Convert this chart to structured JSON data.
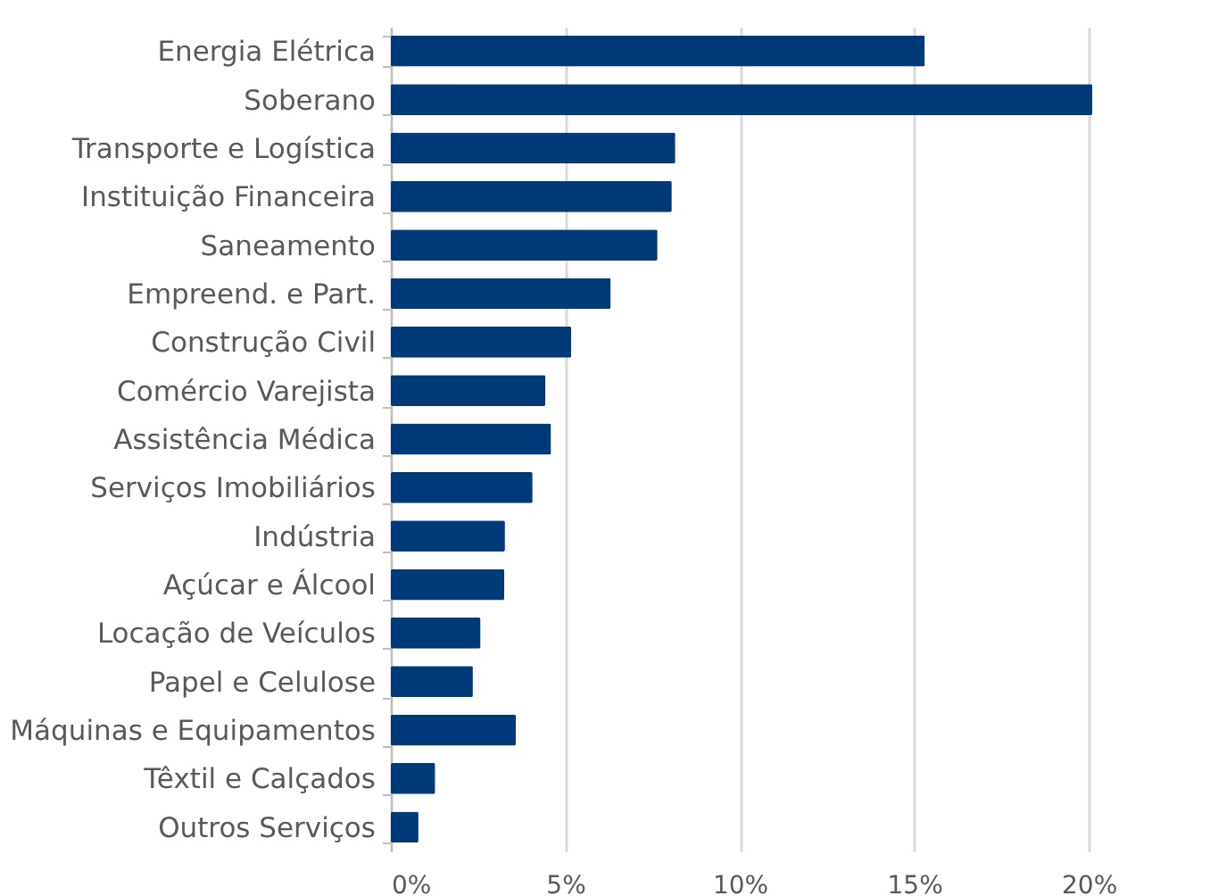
{
  "chart_data": {
    "type": "bar",
    "orientation": "horizontal",
    "categories": [
      "Energia Elétrica",
      "Soberano",
      "Transporte e Logística",
      "Instituição Financeira",
      "Saneamento",
      "Empreend. e Part.",
      "Construção Civil",
      "Comércio Varejista",
      "Assistência Médica",
      "Serviços Imobiliários",
      "Indústria",
      "Açúcar e Álcool",
      "Locação de Veículos",
      "Papel e Celulose",
      "Máquinas e Equipamentos",
      "Têxtil e Calçados",
      "Outros Serviços"
    ],
    "values": [
      15.3,
      20.1,
      8.15,
      8.05,
      7.64,
      6.3,
      5.17,
      4.43,
      4.59,
      4.06,
      3.27,
      3.25,
      2.57,
      2.35,
      3.58,
      1.27,
      0.79
    ],
    "color": "#003a78",
    "xlim": [
      0,
      20.2
    ],
    "xticks": [
      {
        "value": 0,
        "label": "0%"
      },
      {
        "value": 5,
        "label": "5%"
      },
      {
        "value": 10,
        "label": "10%"
      },
      {
        "value": 15,
        "label": "15%"
      },
      {
        "value": 20,
        "label": "20%"
      }
    ],
    "grid": "x"
  }
}
